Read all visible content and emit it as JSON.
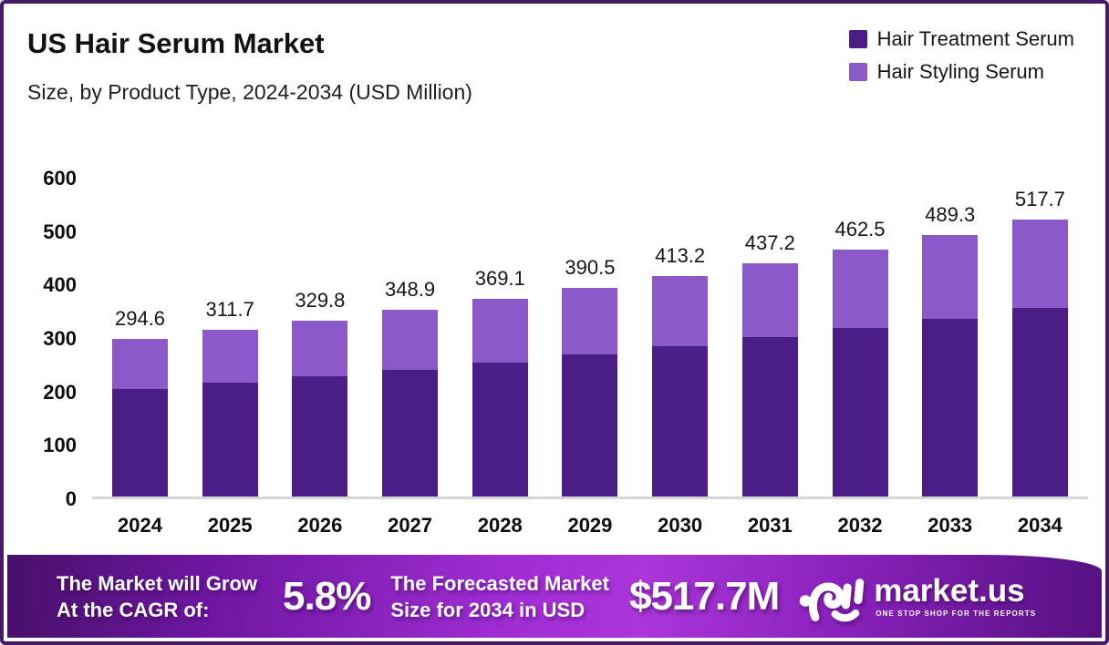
{
  "page": {
    "title": "US Hair Serum Market",
    "subtitle": "Size, by Product Type, 2024-2034 (USD Million)"
  },
  "legend": {
    "items": [
      {
        "label": "Hair Treatment Serum",
        "color": "#4b1d87"
      },
      {
        "label": "Hair Styling Serum",
        "color": "#8c5ac8"
      }
    ]
  },
  "chart_data": {
    "type": "bar",
    "stacked": true,
    "title": "US Hair Serum Market",
    "subtitle": "Size, by Product Type, 2024-2034 (USD Million)",
    "xlabel": "",
    "ylabel": "",
    "unit": "USD Million",
    "categories": [
      "2024",
      "2025",
      "2026",
      "2027",
      "2028",
      "2029",
      "2030",
      "2031",
      "2032",
      "2033",
      "2034"
    ],
    "series": [
      {
        "name": "Hair Treatment Serum",
        "color": "#4b1d87",
        "values": [
          200.6,
          212.3,
          224.6,
          237.6,
          251.4,
          266.0,
          281.4,
          297.7,
          315.0,
          333.2,
          352.6
        ]
      },
      {
        "name": "Hair Styling Serum",
        "color": "#8c5ac8",
        "values": [
          94.0,
          99.4,
          105.2,
          111.3,
          117.7,
          124.5,
          131.8,
          139.5,
          147.5,
          156.1,
          165.1
        ]
      }
    ],
    "totals": [
      294.6,
      311.7,
      329.8,
      348.9,
      369.1,
      390.5,
      413.2,
      437.2,
      462.5,
      489.3,
      517.7
    ],
    "total_labels": [
      "294.6",
      "311.7",
      "329.8",
      "348.9",
      "369.1",
      "390.5",
      "413.2",
      "437.2",
      "462.5",
      "489.3",
      "517.7"
    ],
    "ylim": [
      0,
      600
    ],
    "yticks": [
      0,
      100,
      200,
      300,
      400,
      500,
      600
    ],
    "grid": false,
    "legend_position": "top-right"
  },
  "banner": {
    "cagr_label_line1": "The Market will Grow",
    "cagr_label_line2": "At the CAGR of:",
    "cagr_value": "5.8%",
    "forecast_label_line1": "The Forecasted Market",
    "forecast_label_line2": "Size for 2034 in USD",
    "forecast_value": "$517.7M",
    "brand_name": "market.us",
    "brand_tagline": "ONE STOP SHOP FOR THE REPORTS"
  },
  "colors": {
    "treatment": "#4b1d87",
    "styling": "#8c5ac8",
    "frame_border": "#471a68",
    "baseline": "#d6d6d6"
  }
}
